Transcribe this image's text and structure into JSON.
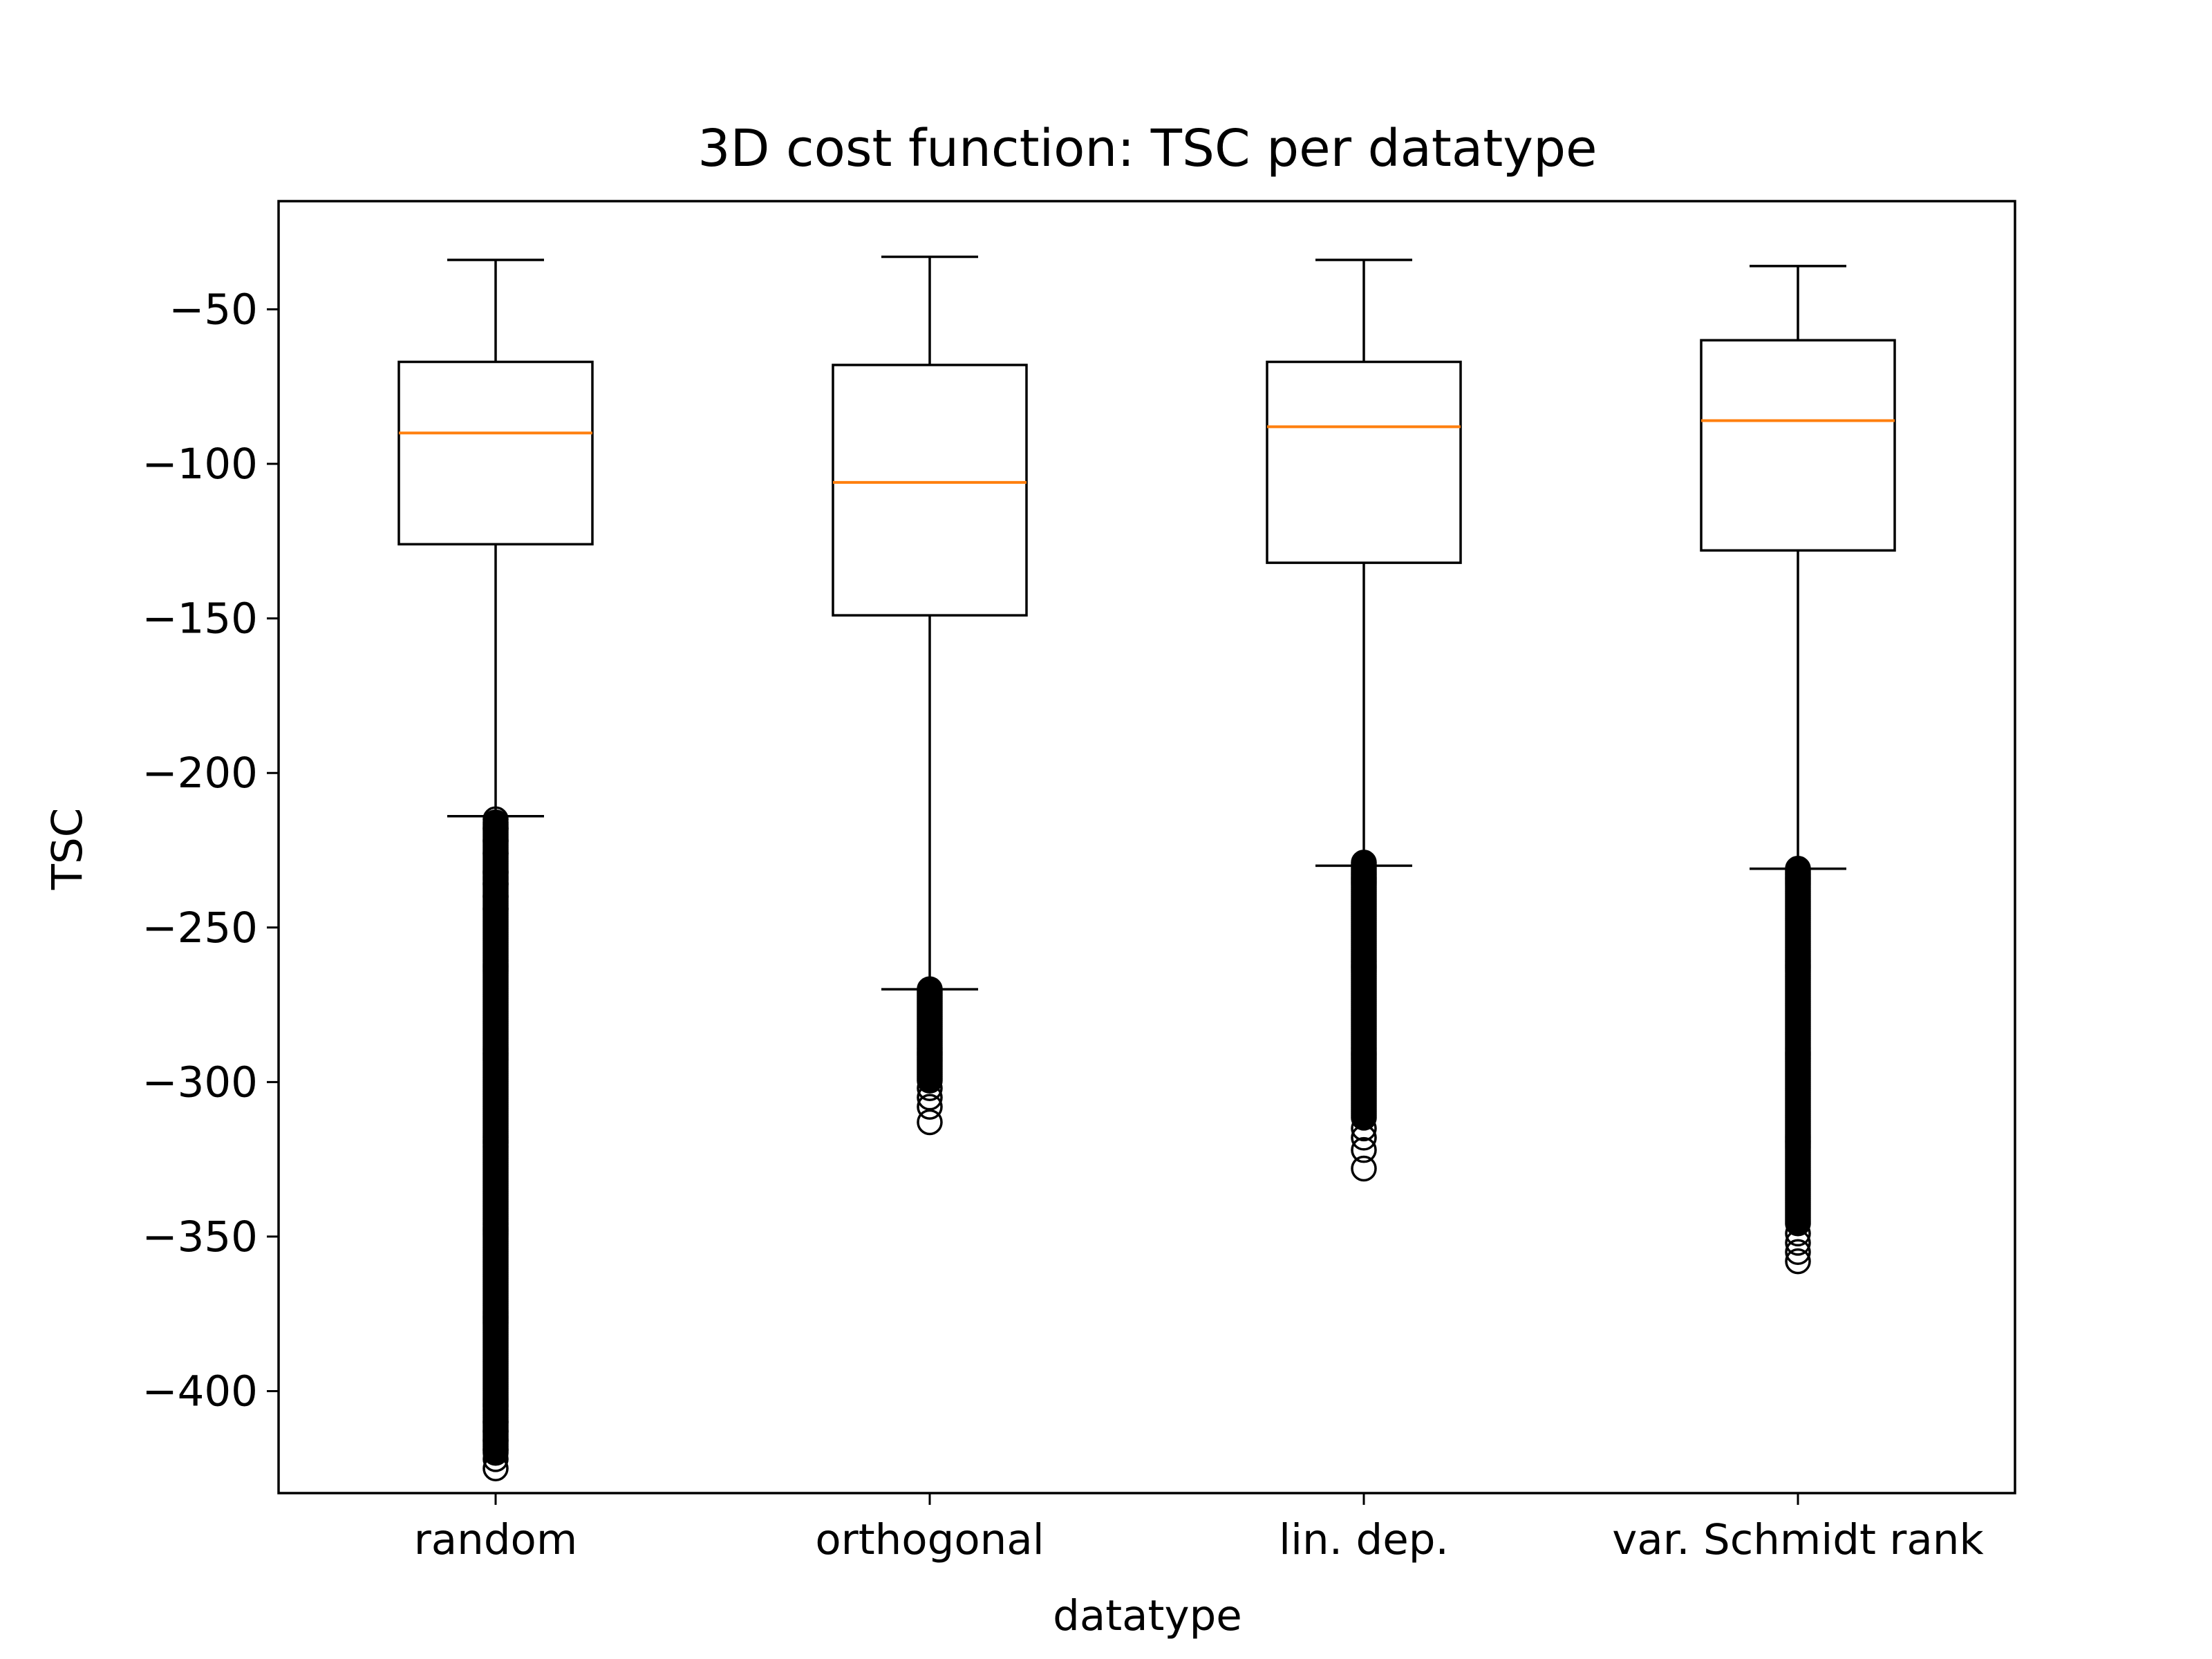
{
  "chart_data": {
    "type": "box",
    "title": "3D cost function: TSC per datatype",
    "xlabel": "datatype",
    "ylabel": "TSC",
    "ylim": [
      -433,
      -15
    ],
    "yticks": [
      -50,
      -100,
      -150,
      -200,
      -250,
      -300,
      -350,
      -400
    ],
    "ytick_labels": [
      "−50",
      "−100",
      "−150",
      "−200",
      "−250",
      "−300",
      "−350",
      "−400"
    ],
    "grid": false,
    "colors": {
      "box": "#000000",
      "median": "#ff7f0e",
      "background": "#ffffff"
    },
    "categories": [
      "random",
      "orthogonal",
      "lin. dep.",
      "var. Schmidt rank"
    ],
    "boxes": [
      {
        "category": "random",
        "whisker_high": -34,
        "q3": -67,
        "median": -90,
        "q1": -126,
        "whisker_low": -214,
        "outliers_dense_range": [
          -216,
          -420
        ],
        "outliers": [
          -215,
          -218,
          -222,
          -226,
          -232,
          -236,
          -240,
          -244,
          -410,
          -413,
          -416,
          -419,
          -422,
          -425
        ]
      },
      {
        "category": "orthogonal",
        "whisker_high": -33,
        "q3": -68,
        "median": -106,
        "q1": -149,
        "whisker_low": -270,
        "outliers_dense_range": [
          -270,
          -300
        ],
        "outliers": [
          -302,
          -305,
          -308,
          -313
        ]
      },
      {
        "category": "lin. dep.",
        "whisker_high": -34,
        "q3": -67,
        "median": -88,
        "q1": -132,
        "whisker_low": -230,
        "outliers_dense_range": [
          -229,
          -312
        ],
        "outliers": [
          -315,
          -318,
          -322,
          -328
        ]
      },
      {
        "category": "var. Schmidt rank",
        "whisker_high": -36,
        "q3": -60,
        "median": -86,
        "q1": -128,
        "whisker_low": -231,
        "outliers_dense_range": [
          -231,
          -346
        ],
        "outliers": [
          -349,
          -352,
          -355,
          -358
        ]
      }
    ]
  }
}
